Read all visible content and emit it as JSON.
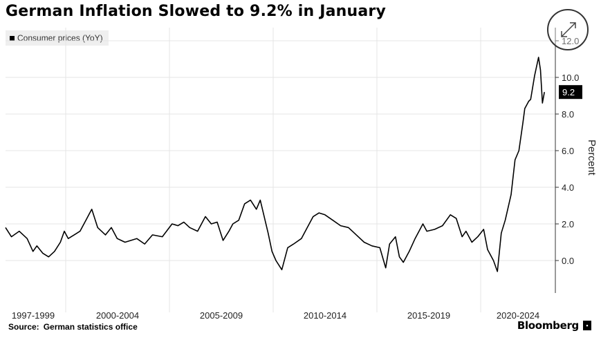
{
  "title": "German Inflation Slowed to 9.2% in January",
  "legend": {
    "label": "Consumer prices (YoY)"
  },
  "footer": {
    "source_label": "Source:",
    "source_text": "German statistics office",
    "brand": "Bloomberg",
    "brand_icon": "bloomberg-terminal-icon"
  },
  "colors": {
    "line": "#000000",
    "grid": "#e4e4e4",
    "legend_bg": "#efefef",
    "last_value_bg": "#000000"
  },
  "chart_data": {
    "type": "line",
    "title": "German Inflation Slowed to 9.2% in January",
    "xlabel": "",
    "ylabel": "Percent",
    "xlim": [
      1995.5,
      2023.1
    ],
    "ylim": [
      -1.0,
      13.2
    ],
    "y_ticks": [
      0.0,
      2.0,
      4.0,
      6.0,
      8.0,
      10.0,
      12.0
    ],
    "y_tick_labels": [
      "0.0",
      "2.0",
      "4.0",
      "6.0",
      "8.0",
      "10.0",
      "12.0"
    ],
    "x_tick_labels": [
      "1997-1999",
      "2000-2004",
      "2005-2009",
      "2010-2014",
      "2015-2019",
      "2020-2024"
    ],
    "grid": true,
    "legend_position": "top-left",
    "last_value_label": "9.2",
    "series": [
      {
        "name": "Consumer prices (YoY)",
        "x": [
          1995.5,
          1995.8,
          1996.2,
          1996.6,
          1996.9,
          1997.1,
          1997.4,
          1997.7,
          1998.0,
          1998.3,
          1998.5,
          1998.7,
          1999.0,
          1999.3,
          1999.6,
          1999.9,
          2000.2,
          2000.6,
          2000.9,
          2001.2,
          2001.4,
          2001.6,
          2001.9,
          2002.2,
          2002.6,
          2003.0,
          2003.5,
          2004.0,
          2004.3,
          2004.6,
          2004.9,
          2005.3,
          2005.7,
          2006.0,
          2006.3,
          2006.6,
          2006.9,
          2007.1,
          2007.4,
          2007.7,
          2008.0,
          2008.3,
          2008.5,
          2008.7,
          2008.9,
          2009.1,
          2009.3,
          2009.6,
          2009.9,
          2010.2,
          2010.6,
          2010.9,
          2011.2,
          2011.5,
          2011.8,
          2012.2,
          2012.6,
          2013.0,
          2013.4,
          2013.8,
          2014.2,
          2014.6,
          2014.9,
          2015.1,
          2015.4,
          2015.6,
          2015.8,
          2016.1,
          2016.4,
          2016.8,
          2017.0,
          2017.4,
          2017.8,
          2018.2,
          2018.5,
          2018.8,
          2019.0,
          2019.3,
          2019.6,
          2019.9,
          2020.1,
          2020.4,
          2020.6,
          2020.8,
          2021.0,
          2021.3,
          2021.5,
          2021.7,
          2021.9,
          2022.0,
          2022.2,
          2022.3,
          2022.5,
          2022.7,
          2022.8,
          2022.9,
          2023.0
        ],
        "values": [
          1.8,
          1.3,
          1.6,
          1.2,
          0.5,
          0.8,
          0.4,
          0.2,
          0.5,
          1.0,
          1.6,
          1.2,
          1.4,
          1.6,
          2.2,
          2.8,
          1.8,
          1.4,
          1.8,
          1.2,
          1.1,
          1.0,
          1.1,
          1.2,
          0.9,
          1.4,
          1.3,
          2.0,
          1.9,
          2.1,
          1.8,
          1.6,
          2.4,
          2.0,
          2.1,
          1.1,
          1.6,
          2.0,
          2.2,
          3.1,
          3.3,
          2.8,
          3.3,
          2.4,
          1.5,
          0.5,
          0.0,
          -0.5,
          0.7,
          0.9,
          1.2,
          1.8,
          2.4,
          2.6,
          2.5,
          2.2,
          1.9,
          1.8,
          1.4,
          1.0,
          0.8,
          0.7,
          -0.4,
          0.9,
          1.3,
          0.2,
          -0.1,
          0.5,
          1.2,
          2.0,
          1.6,
          1.7,
          1.9,
          2.5,
          2.3,
          1.3,
          1.6,
          1.0,
          1.3,
          1.7,
          0.6,
          0.0,
          -0.6,
          1.5,
          2.2,
          3.6,
          5.5,
          6.0,
          7.5,
          8.3,
          8.7,
          8.8,
          10.1,
          11.1,
          10.4,
          8.6,
          9.2
        ]
      }
    ]
  }
}
